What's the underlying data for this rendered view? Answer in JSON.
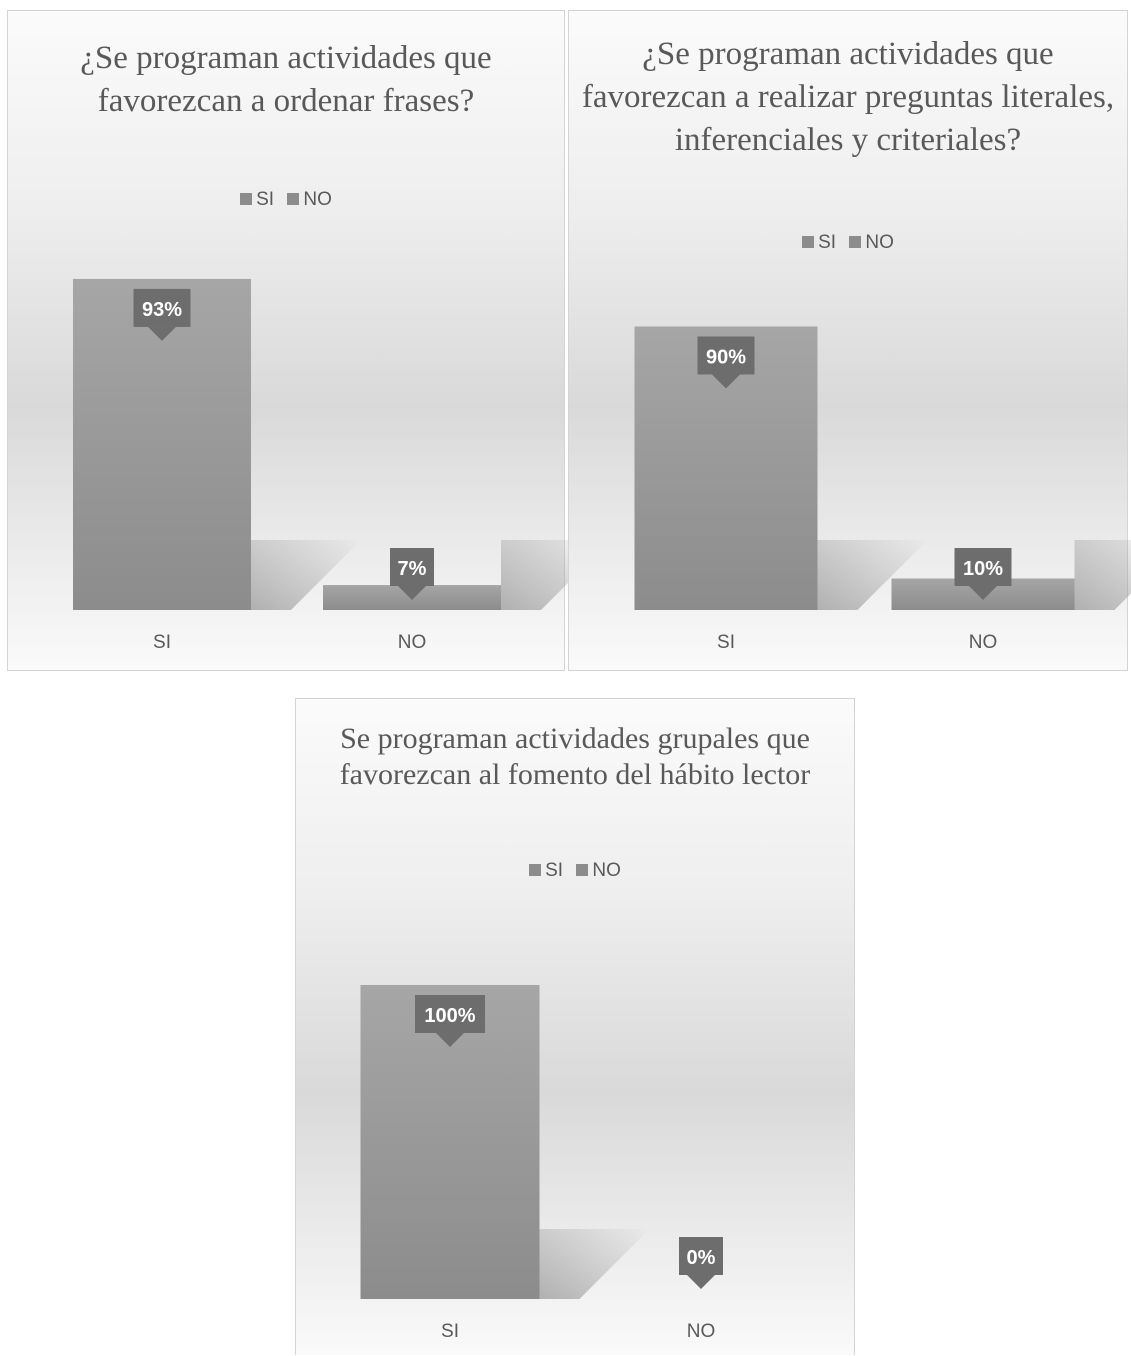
{
  "colors": {
    "bar_top": "#a6a6a6",
    "bar_bottom": "#8c8c8c",
    "label_bg": "#6d6d6d",
    "label_text": "#ffffff",
    "text": "#595959"
  },
  "chart_data": [
    {
      "type": "bar",
      "title": "¿Se programan actividades que favorezcan a ordenar frases?",
      "categories": [
        "SI",
        "NO"
      ],
      "series": [
        {
          "values": [
            93,
            7
          ],
          "labels": [
            "93%",
            "7%"
          ]
        }
      ],
      "legend": {
        "entries": [
          "SI",
          "NO"
        ],
        "position": "top"
      },
      "ylim": [
        0,
        100
      ],
      "grid": false
    },
    {
      "type": "bar",
      "title": "¿Se programan actividades que favorezcan a realizar preguntas literales, inferenciales y criteriales?",
      "categories": [
        "SI",
        "NO"
      ],
      "series": [
        {
          "values": [
            90,
            10
          ],
          "labels": [
            "90%",
            "10%"
          ]
        }
      ],
      "legend": {
        "entries": [
          "SI",
          "NO"
        ],
        "position": "top"
      },
      "ylim": [
        0,
        100
      ],
      "grid": false
    },
    {
      "type": "bar",
      "title": "Se programan actividades grupales que favorezcan al fomento del hábito lector",
      "categories": [
        "SI",
        "NO"
      ],
      "series": [
        {
          "values": [
            100,
            0
          ],
          "labels": [
            "100%",
            "0%"
          ]
        }
      ],
      "legend": {
        "entries": [
          "SI",
          "NO"
        ],
        "position": "top"
      },
      "ylim": [
        0,
        100
      ],
      "grid": false
    }
  ]
}
